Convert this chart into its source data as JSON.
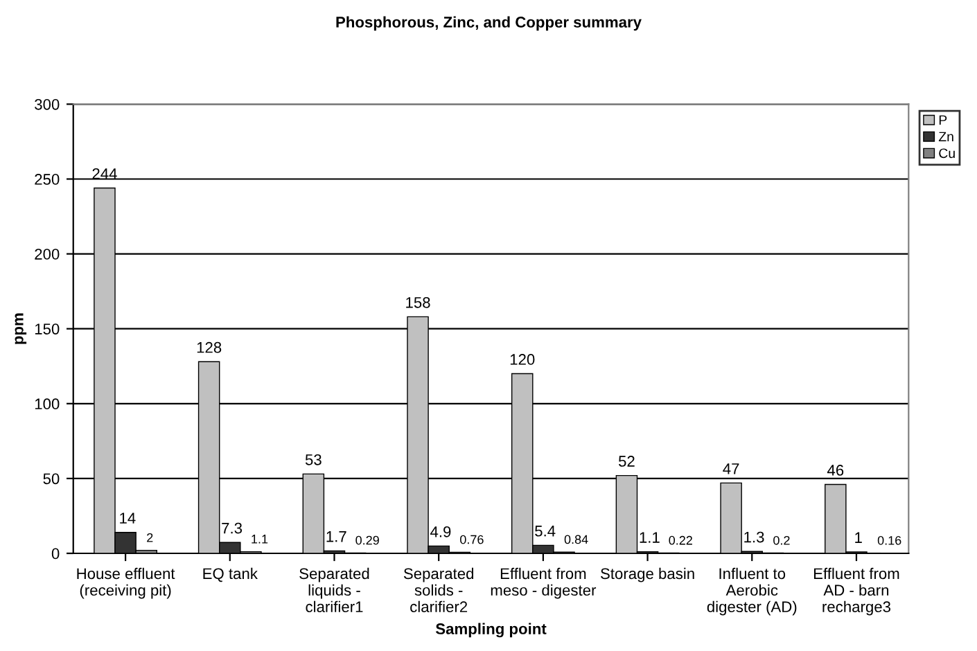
{
  "chart_data": {
    "type": "bar",
    "title": "Phosphorous, Zinc, and Copper summary",
    "xlabel": "Sampling point",
    "ylabel": "ppm",
    "categories": [
      "House effluent\n(receiving pit)",
      "EQ tank",
      "Separated\nliquids -\nclarifier1",
      "Separated\nsolids -\nclarifier2",
      "Effluent from\nmeso - digester",
      "Storage basin",
      "Influent to\nAerobic\ndigester (AD)",
      "Effluent from\nAD - barn\nrecharge3"
    ],
    "series": [
      {
        "name": "P",
        "color": "#c0c0c0",
        "values": [
          244,
          128,
          53,
          158,
          120,
          52,
          47,
          46
        ]
      },
      {
        "name": "Zn",
        "color": "#333333",
        "values": [
          14,
          7.3,
          1.7,
          4.9,
          5.4,
          1.1,
          1.3,
          1
        ]
      },
      {
        "name": "Cu",
        "color": "#808080",
        "values": [
          2,
          1.1,
          0.29,
          0.76,
          0.84,
          0.22,
          0.2,
          0.16
        ]
      }
    ],
    "ylim": [
      0,
      300
    ],
    "yticks": [
      0,
      50,
      100,
      150,
      200,
      250,
      300
    ],
    "grid": "y",
    "legend": "top right",
    "data_labels": true
  }
}
